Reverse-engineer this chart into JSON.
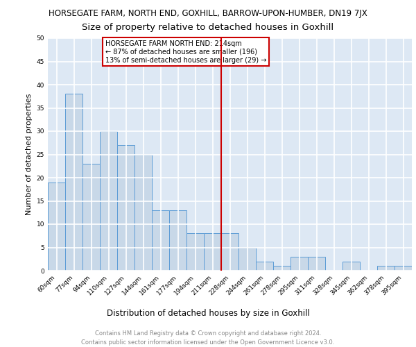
{
  "title": "HORSEGATE FARM, NORTH END, GOXHILL, BARROW-UPON-HUMBER, DN19 7JX",
  "subtitle": "Size of property relative to detached houses in Goxhill",
  "xlabel": "Distribution of detached houses by size in Goxhill",
  "ylabel": "Number of detached properties",
  "categories": [
    "60sqm",
    "77sqm",
    "94sqm",
    "110sqm",
    "127sqm",
    "144sqm",
    "161sqm",
    "177sqm",
    "194sqm",
    "211sqm",
    "228sqm",
    "244sqm",
    "261sqm",
    "278sqm",
    "295sqm",
    "311sqm",
    "328sqm",
    "345sqm",
    "362sqm",
    "378sqm",
    "395sqm"
  ],
  "values": [
    19,
    38,
    23,
    30,
    27,
    25,
    13,
    13,
    8,
    8,
    8,
    5,
    2,
    1,
    3,
    3,
    0,
    2,
    0,
    1,
    1
  ],
  "bar_color": "#c8d8e8",
  "bar_edge_color": "#5b9bd5",
  "background_color": "#dde8f4",
  "grid_color": "#ffffff",
  "vline_x_index": 9.5,
  "vline_color": "#cc0000",
  "annotation_text": "HORSEGATE FARM NORTH END: 214sqm\n← 87% of detached houses are smaller (196)\n13% of semi-detached houses are larger (29) →",
  "annotation_box_color": "#ffffff",
  "annotation_box_edge": "#cc0000",
  "ylim": [
    0,
    50
  ],
  "yticks": [
    0,
    5,
    10,
    15,
    20,
    25,
    30,
    35,
    40,
    45,
    50
  ],
  "footer": "Contains HM Land Registry data © Crown copyright and database right 2024.\nContains public sector information licensed under the Open Government Licence v3.0.",
  "title_fontsize": 8.5,
  "subtitle_fontsize": 9.5,
  "xlabel_fontsize": 8.5,
  "ylabel_fontsize": 8,
  "tick_fontsize": 6.5,
  "annotation_fontsize": 7,
  "footer_fontsize": 6
}
